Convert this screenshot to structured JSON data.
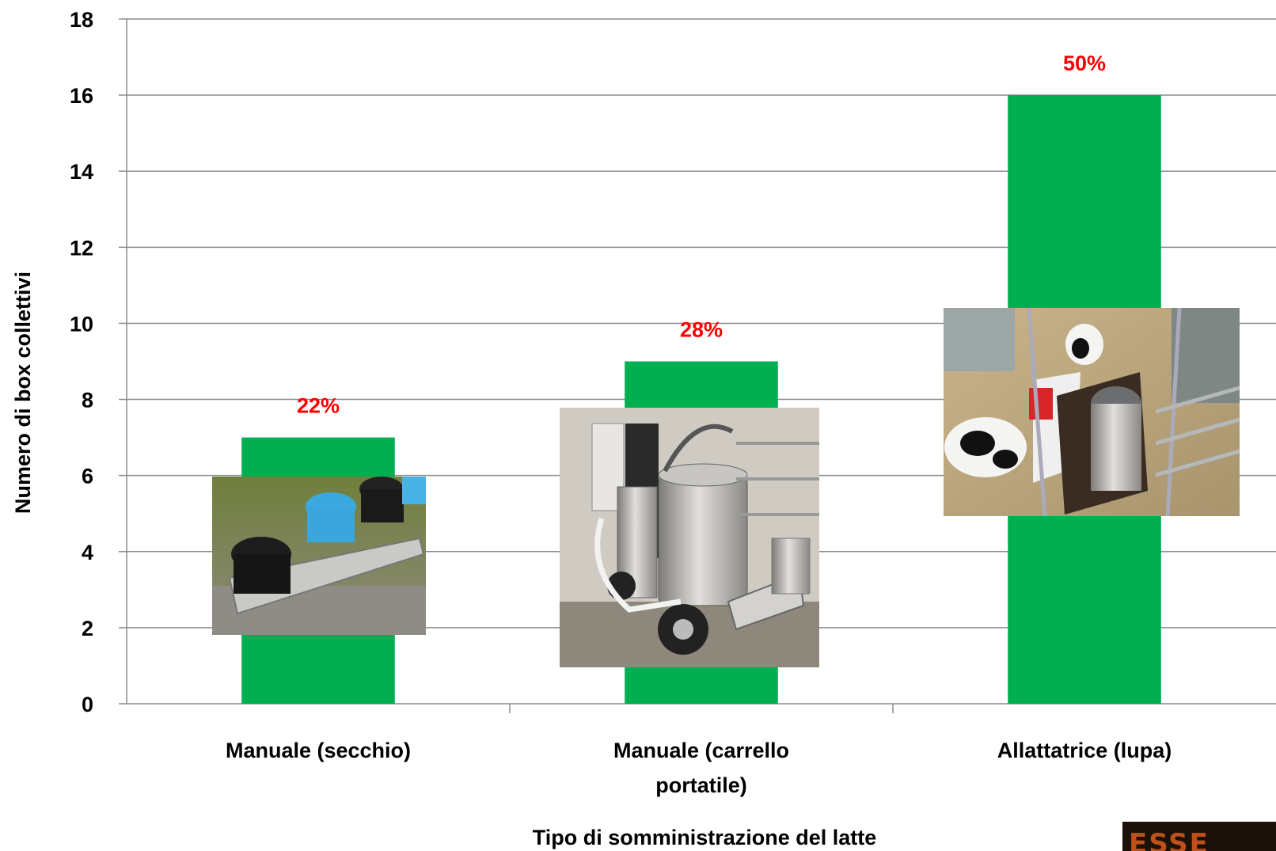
{
  "chart_data": {
    "type": "bar",
    "categories": [
      "Manuale (secchio)",
      "Manuale (carrello portatile)",
      "Allattatrice (lupa)"
    ],
    "category_lines": [
      [
        "Manuale (secchio)"
      ],
      [
        "Manuale (carrello",
        "portatile)"
      ],
      [
        "Allattatrice (lupa)"
      ]
    ],
    "values": [
      7,
      9,
      16
    ],
    "data_labels": [
      "22%",
      "28%",
      "50%"
    ],
    "xlabel": "Tipo di somministrazione del latte",
    "ylabel": "Numero di box collettivi",
    "ylim": [
      0,
      18
    ],
    "yticks": [
      0,
      2,
      4,
      6,
      8,
      10,
      12,
      14,
      16,
      18
    ],
    "grid": true,
    "legend": "none",
    "bar_color": "#00b050",
    "label_color": "#ff0000",
    "gridline_color": "#8c8c8c",
    "photos": [
      "bucket-feeders-photo",
      "milk-cart-photo",
      "automatic-feeder-photo"
    ]
  }
}
